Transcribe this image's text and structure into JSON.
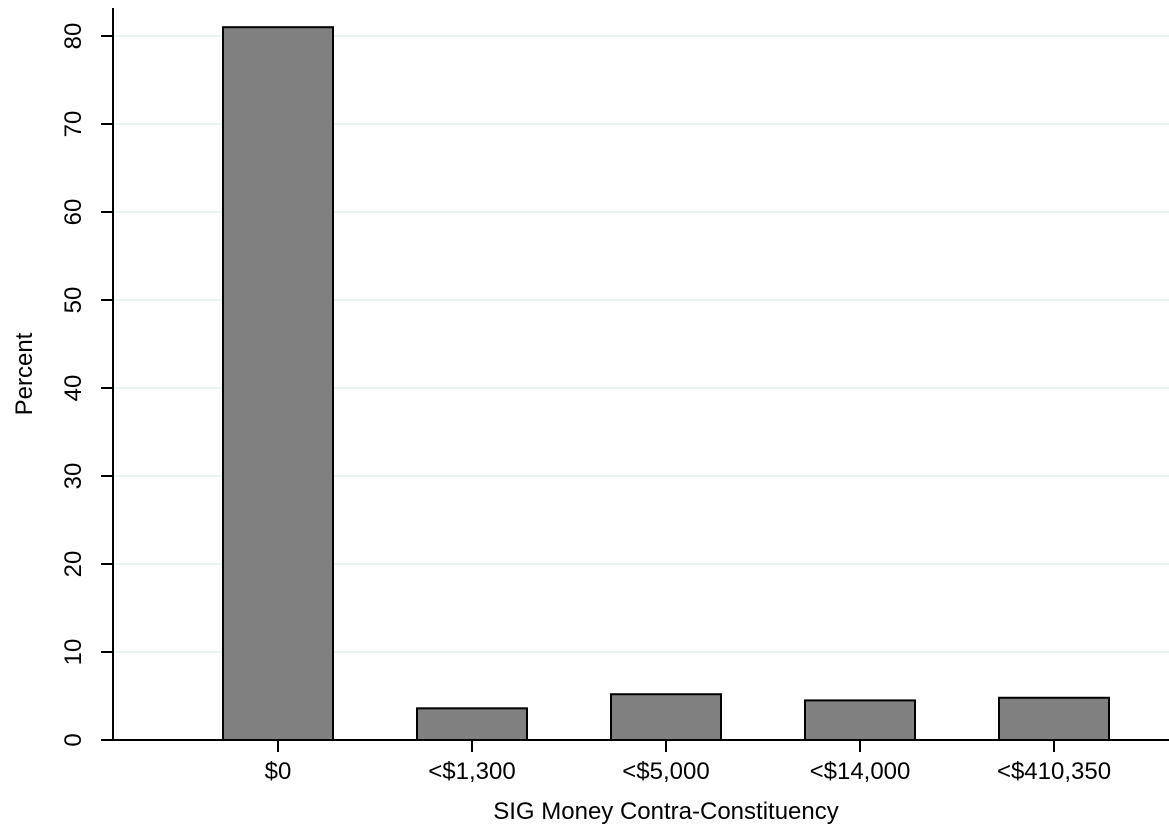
{
  "chart_data": {
    "type": "bar",
    "categories": [
      "$0",
      "<$1,300",
      "<$5,000",
      "<$14,000",
      "<$410,350"
    ],
    "values": [
      81.0,
      3.6,
      5.2,
      4.5,
      4.8
    ],
    "xlabel": "SIG Money Contra-Constituency",
    "ylabel": "Percent",
    "ylim": [
      0,
      80
    ],
    "yticks": [
      0,
      10,
      20,
      30,
      40,
      50,
      60,
      70,
      80
    ],
    "ytick_labels": [
      "0",
      "10",
      "20",
      "30",
      "40",
      "50",
      "60",
      "70",
      "80"
    ],
    "grid": true,
    "colors": {
      "bar_fill": "#808080",
      "bar_stroke": "#000000",
      "grid": "#e6eef0"
    }
  }
}
